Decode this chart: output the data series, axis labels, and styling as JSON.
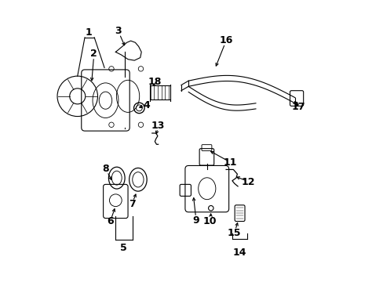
{
  "background_color": "#ffffff",
  "line_color": "#000000",
  "fig_width": 4.89,
  "fig_height": 3.6,
  "dpi": 100,
  "font_size": 9
}
